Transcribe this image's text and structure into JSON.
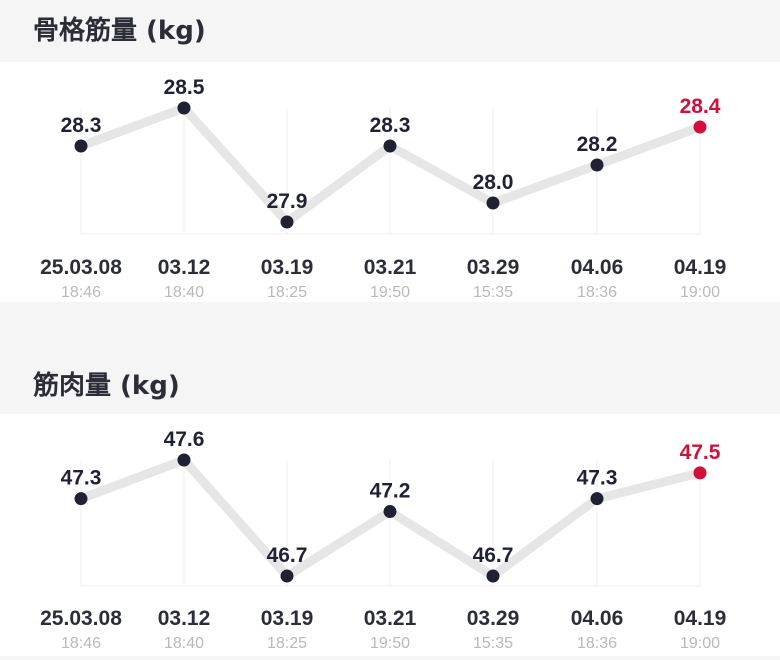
{
  "charts": [
    {
      "title": "骨格筋量 (kg)",
      "chart_data": {
        "type": "line",
        "x": [
          "25.03.08",
          "03.12",
          "03.19",
          "03.21",
          "03.29",
          "04.06",
          "04.19"
        ],
        "times": [
          "18:46",
          "18:40",
          "18:25",
          "19:50",
          "15:35",
          "18:36",
          "19:00"
        ],
        "values": [
          28.3,
          28.5,
          27.9,
          28.3,
          28.0,
          28.2,
          28.4
        ],
        "value_labels": [
          "28.3",
          "28.5",
          "27.9",
          "28.3",
          "28.0",
          "28.2",
          "28.4"
        ],
        "highlight_index": 6
      }
    },
    {
      "title": "筋肉量 (kg)",
      "chart_data": {
        "type": "line",
        "x": [
          "25.03.08",
          "03.12",
          "03.19",
          "03.21",
          "03.29",
          "04.06",
          "04.19"
        ],
        "times": [
          "18:46",
          "18:40",
          "18:25",
          "19:50",
          "15:35",
          "18:36",
          "19:00"
        ],
        "values": [
          47.3,
          47.6,
          46.7,
          47.2,
          46.7,
          47.3,
          47.5
        ],
        "value_labels": [
          "47.3",
          "47.6",
          "46.7",
          "47.2",
          "46.7",
          "47.3",
          "47.5"
        ],
        "highlight_index": 6
      }
    }
  ],
  "colors": {
    "point": "#1f2235",
    "highlight": "#d0103a",
    "line": "#e6e6e6",
    "grid": "#efefef",
    "date": "#2b2e38",
    "time": "#b9b9bd"
  }
}
